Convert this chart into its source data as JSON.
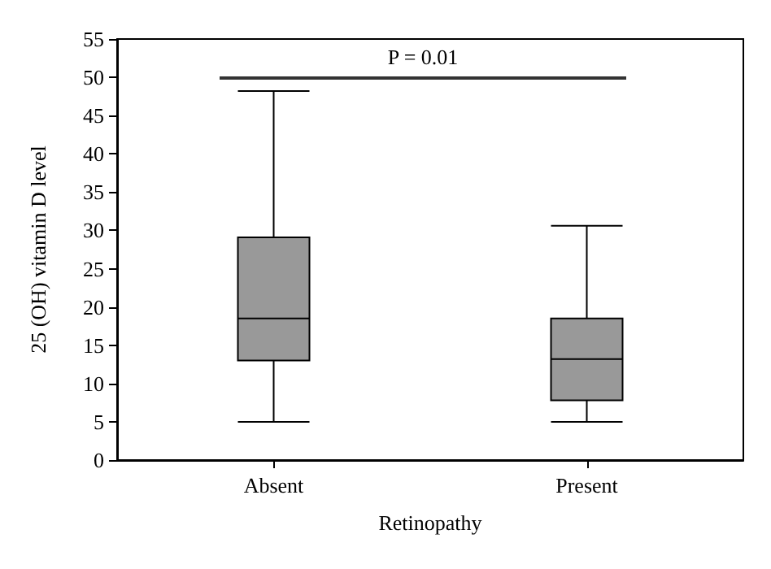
{
  "chart_data": {
    "type": "box",
    "xlabel": "Retinopathy",
    "ylabel": "25 (OH) vitamin D level",
    "categories": [
      "Absent",
      "Present"
    ],
    "boxes": [
      {
        "low": 5,
        "q1": 13,
        "median": 18.5,
        "q3": 29.1,
        "high": 48.2
      },
      {
        "low": 5,
        "q1": 7.8,
        "median": 13.2,
        "q3": 18.5,
        "high": 30.6
      }
    ],
    "color": "#999999",
    "ylim": [
      0,
      55
    ],
    "yticks": [
      0,
      5,
      10,
      15,
      20,
      25,
      30,
      35,
      40,
      45,
      50,
      55
    ],
    "annotations": [
      "P = 0.01"
    ],
    "grid": false
  }
}
